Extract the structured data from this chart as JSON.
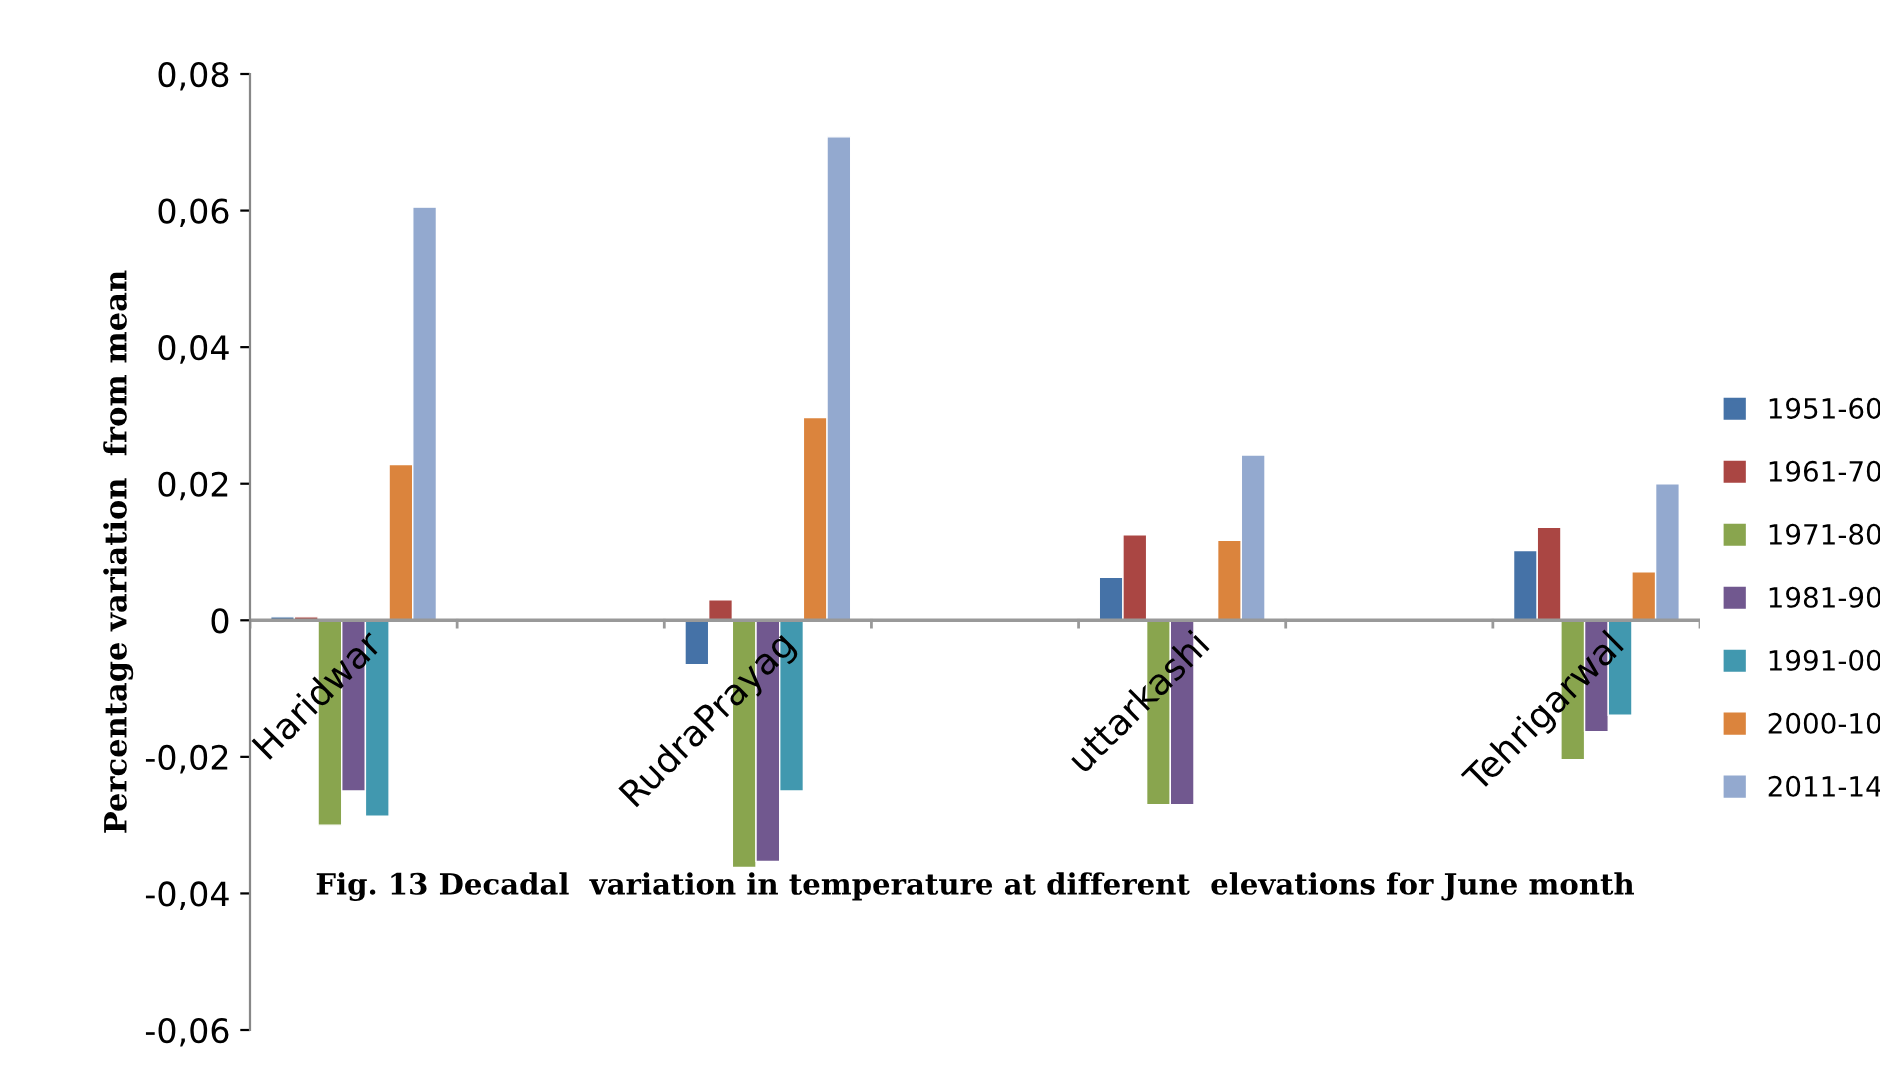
{
  "chart_data": {
    "type": "bar",
    "ylabel": "Percentage variation  from mean",
    "annotations": [
      "Fig. 13 Decadal  variation in temperature at different  elevations for June month"
    ],
    "categories": [
      "Haridwar",
      null,
      "RudraPrayag",
      null,
      "uttarkashi",
      null,
      "Tehrigarwal"
    ],
    "series": [
      {
        "name": "1951-60",
        "color": "#4572a7",
        "values": [
          0.0005,
          null,
          -0.0065,
          null,
          0.0063,
          null,
          0.0102
        ]
      },
      {
        "name": "1961-70",
        "color": "#aa4643",
        "values": [
          0.0005,
          null,
          0.003,
          null,
          0.0125,
          null,
          0.0136
        ]
      },
      {
        "name": "1971-80",
        "color": "#89a54e",
        "values": [
          -0.03,
          null,
          -0.0362,
          null,
          -0.027,
          null,
          -0.0204
        ]
      },
      {
        "name": "1981-90",
        "color": "#71588f",
        "values": [
          -0.025,
          null,
          -0.0353,
          null,
          -0.027,
          null,
          -0.0163
        ]
      },
      {
        "name": "1991-00",
        "color": "#4198af",
        "values": [
          -0.0287,
          null,
          -0.025,
          null,
          null,
          null,
          -0.0139
        ]
      },
      {
        "name": "2000-10",
        "color": "#db843d",
        "values": [
          0.0228,
          null,
          0.0297,
          null,
          0.0117,
          null,
          0.0071
        ]
      },
      {
        "name": "2011-14",
        "color": "#93a9cf",
        "values": [
          0.0605,
          null,
          0.0708,
          null,
          0.0242,
          null,
          0.02
        ]
      }
    ],
    "ylim": [
      -0.06,
      0.08
    ],
    "yticks": [
      {
        "value": -0.06,
        "label": "-0,06"
      },
      {
        "value": -0.04,
        "label": "-0,04"
      },
      {
        "value": -0.02,
        "label": "-0,02"
      },
      0,
      {
        "value": 0.02,
        "label": "0,02"
      },
      {
        "value": 0.04,
        "label": "0,04"
      },
      {
        "value": 0.06,
        "label": "0,06"
      },
      {
        "value": 0.08,
        "label": "0,08"
      }
    ],
    "grid": false,
    "legend": "right"
  }
}
